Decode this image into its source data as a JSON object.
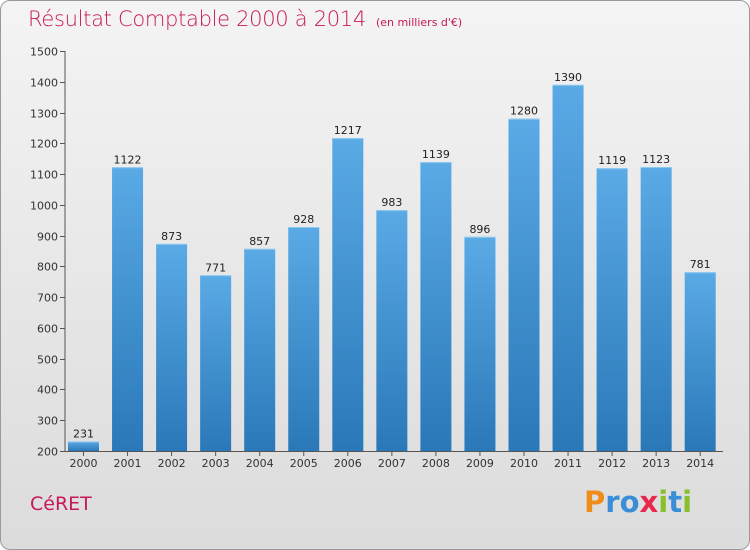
{
  "header": {
    "title": "Résultat Comptable 2000 à 2014",
    "subtitle": "(en milliers d'€)"
  },
  "footer": {
    "town": "CéRET",
    "logo_letters": [
      {
        "ch": "P",
        "color": "#f08c1c"
      },
      {
        "ch": "r",
        "color": "#3a8ed8"
      },
      {
        "ch": "o",
        "color": "#3a8ed8"
      },
      {
        "ch": "x",
        "color": "#e8284c"
      },
      {
        "ch": "i",
        "color": "#88bf2a"
      },
      {
        "ch": "t",
        "color": "#3a8ed8"
      },
      {
        "ch": "i",
        "color": "#88bf2a"
      }
    ]
  },
  "chart_data": {
    "type": "bar",
    "title": "Résultat Comptable 2000 à 2014",
    "subtitle": "(en milliers d'€)",
    "categories": [
      "2000",
      "2001",
      "2002",
      "2003",
      "2004",
      "2005",
      "2006",
      "2007",
      "2008",
      "2009",
      "2010",
      "2011",
      "2012",
      "2013",
      "2014"
    ],
    "values": [
      231,
      1122,
      873,
      771,
      857,
      928,
      1217,
      983,
      1139,
      896,
      1280,
      1390,
      1119,
      1123,
      781
    ],
    "ylim": [
      200,
      1500
    ],
    "yticks": [
      200,
      300,
      400,
      500,
      600,
      700,
      800,
      900,
      1000,
      1100,
      1200,
      1300,
      1400,
      1500
    ],
    "bar_color_top": "#5aaae6",
    "bar_color_bottom": "#2a78b8",
    "grid": false
  }
}
